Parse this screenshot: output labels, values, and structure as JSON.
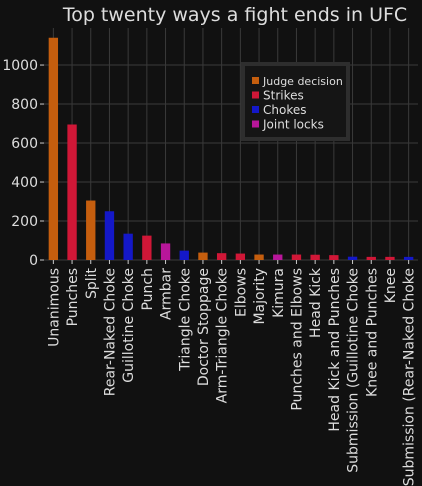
{
  "chart_data": {
    "type": "bar",
    "title": "Top twenty ways a fight ends in UFC",
    "xlabel": "",
    "ylabel": "",
    "ylim": [
      0,
      1190
    ],
    "yticks": [
      0,
      200,
      400,
      600,
      800,
      1000
    ],
    "grid": true,
    "legend_position": "upper-right",
    "categories": [
      "Unanimous",
      "Punches",
      "Split",
      "Rear-Naked Choke",
      "Guillotine Choke",
      "Punch",
      "Armbar",
      "Triangle Choke",
      "Doctor Stoppage",
      "Arm-Triangle Choke",
      "Elbows",
      "Majority",
      "Kimura",
      "Punches and Elbows",
      "Head Kick",
      "Head Kick and Punches",
      "Submission (Guillotine Choke",
      "Knee and Punches",
      "Knee",
      "Submission (Rear-Naked Choke"
    ],
    "values": [
      1140,
      695,
      305,
      250,
      135,
      125,
      85,
      48,
      38,
      35,
      33,
      28,
      28,
      28,
      27,
      25,
      17,
      16,
      16,
      16
    ],
    "groups": [
      "Judge decision",
      "Strikes",
      "Judge decision",
      "Chokes",
      "Chokes",
      "Strikes",
      "Joint locks",
      "Chokes",
      "Judge decision",
      "Strikes",
      "Strikes",
      "Judge decision",
      "Joint locks",
      "Strikes",
      "Strikes",
      "Strikes",
      "Chokes",
      "Strikes",
      "Strikes",
      "Chokes"
    ],
    "legend": [
      {
        "name": "Judge decision",
        "color": "#c55e0e"
      },
      {
        "name": "Strikes",
        "color": "#d01737"
      },
      {
        "name": "Chokes",
        "color": "#1418c8"
      },
      {
        "name": "Joint locks",
        "color": "#b8169a"
      }
    ]
  }
}
